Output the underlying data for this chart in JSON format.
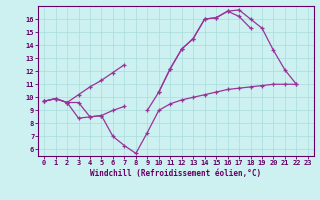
{
  "xlabel": "Windchill (Refroidissement éolien,°C)",
  "background_color": "#cdf0f0",
  "grid_color": "#aadddd",
  "line_color": "#993399",
  "xlim": [
    -0.5,
    23.5
  ],
  "ylim": [
    5.5,
    17.0
  ],
  "xticks": [
    0,
    1,
    2,
    3,
    4,
    5,
    6,
    7,
    8,
    9,
    10,
    11,
    12,
    13,
    14,
    15,
    16,
    17,
    18,
    19,
    20,
    21,
    22,
    23
  ],
  "yticks": [
    6,
    7,
    8,
    9,
    10,
    11,
    12,
    13,
    14,
    15,
    16
  ],
  "series": [
    {
      "x": [
        0,
        1,
        2,
        3,
        4,
        5,
        6,
        7,
        8,
        9,
        10,
        11,
        12,
        13,
        14,
        15,
        16,
        17,
        18,
        19,
        20,
        21,
        22
      ],
      "y": [
        9.7,
        9.9,
        9.6,
        10.2,
        10.8,
        11.3,
        11.9,
        12.5,
        null,
        null,
        10.4,
        12.2,
        13.7,
        14.5,
        16.0,
        16.1,
        16.6,
        16.7,
        16.0,
        15.3,
        13.6,
        12.1,
        11.0
      ]
    },
    {
      "x": [
        0,
        1,
        2,
        3,
        4,
        5,
        6,
        7,
        8,
        9,
        10,
        11,
        12,
        13,
        14,
        15,
        16,
        17,
        18,
        19,
        20,
        21,
        22
      ],
      "y": [
        9.7,
        9.9,
        9.6,
        9.6,
        8.5,
        8.6,
        9.0,
        9.3,
        null,
        9.0,
        10.4,
        12.2,
        13.7,
        14.5,
        16.0,
        16.1,
        16.6,
        16.2,
        15.3,
        null,
        null,
        null,
        null
      ]
    },
    {
      "x": [
        0,
        1,
        2,
        3,
        4,
        5,
        6,
        7,
        8,
        9,
        10,
        11,
        12,
        13,
        14,
        15,
        16,
        17,
        18,
        19,
        20,
        21,
        22
      ],
      "y": [
        9.7,
        9.9,
        9.6,
        8.4,
        8.5,
        8.6,
        7.0,
        6.3,
        5.7,
        7.3,
        9.0,
        9.5,
        9.8,
        10.0,
        10.2,
        10.4,
        10.6,
        10.7,
        10.8,
        10.9,
        11.0,
        11.0,
        11.0
      ]
    }
  ]
}
